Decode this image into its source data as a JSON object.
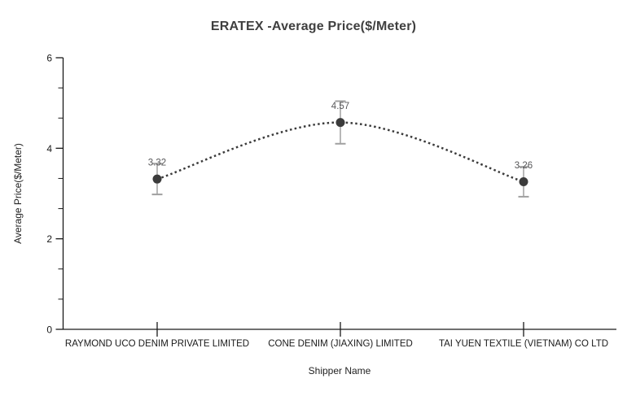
{
  "title": "ERATEX -Average Price($/Meter)",
  "chart_data": {
    "type": "line",
    "title": "ERATEX -Average Price($/Meter)",
    "xlabel": "Shipper Name",
    "ylabel": "Average Price($/Meter)",
    "categories": [
      "RAYMOND UCO DENIM PRIVATE LIMITED",
      "CONE DENIM (JIAXING) LIMITED",
      "TAI YUEN TEXTILE (VIETNAM) CO LTD"
    ],
    "values": [
      3.32,
      4.57,
      3.26
    ],
    "data_labels": [
      "3.32",
      "4.57",
      "3.26"
    ],
    "error_bars": [
      0.34,
      0.47,
      0.33
    ],
    "ylim": [
      0,
      6
    ],
    "y_major_ticks": [
      0,
      2,
      4,
      6
    ],
    "y_tick_labels": [
      "0",
      "2",
      "4",
      "6"
    ],
    "y_minor_tick_interval": 0.6667,
    "grid": false,
    "legend": false,
    "line_style": "dotted",
    "marker": "circle",
    "colors": {
      "series": "#3b3b3b",
      "marker": "#3b3b3b",
      "error_bar": "#a0a0a0",
      "axis": "#1a1a1a",
      "tick_label": "#1a1a1a",
      "axis_title": "#222222",
      "data_label": "#58585a",
      "title": "#3f3f3f",
      "background": "#ffffff"
    }
  }
}
